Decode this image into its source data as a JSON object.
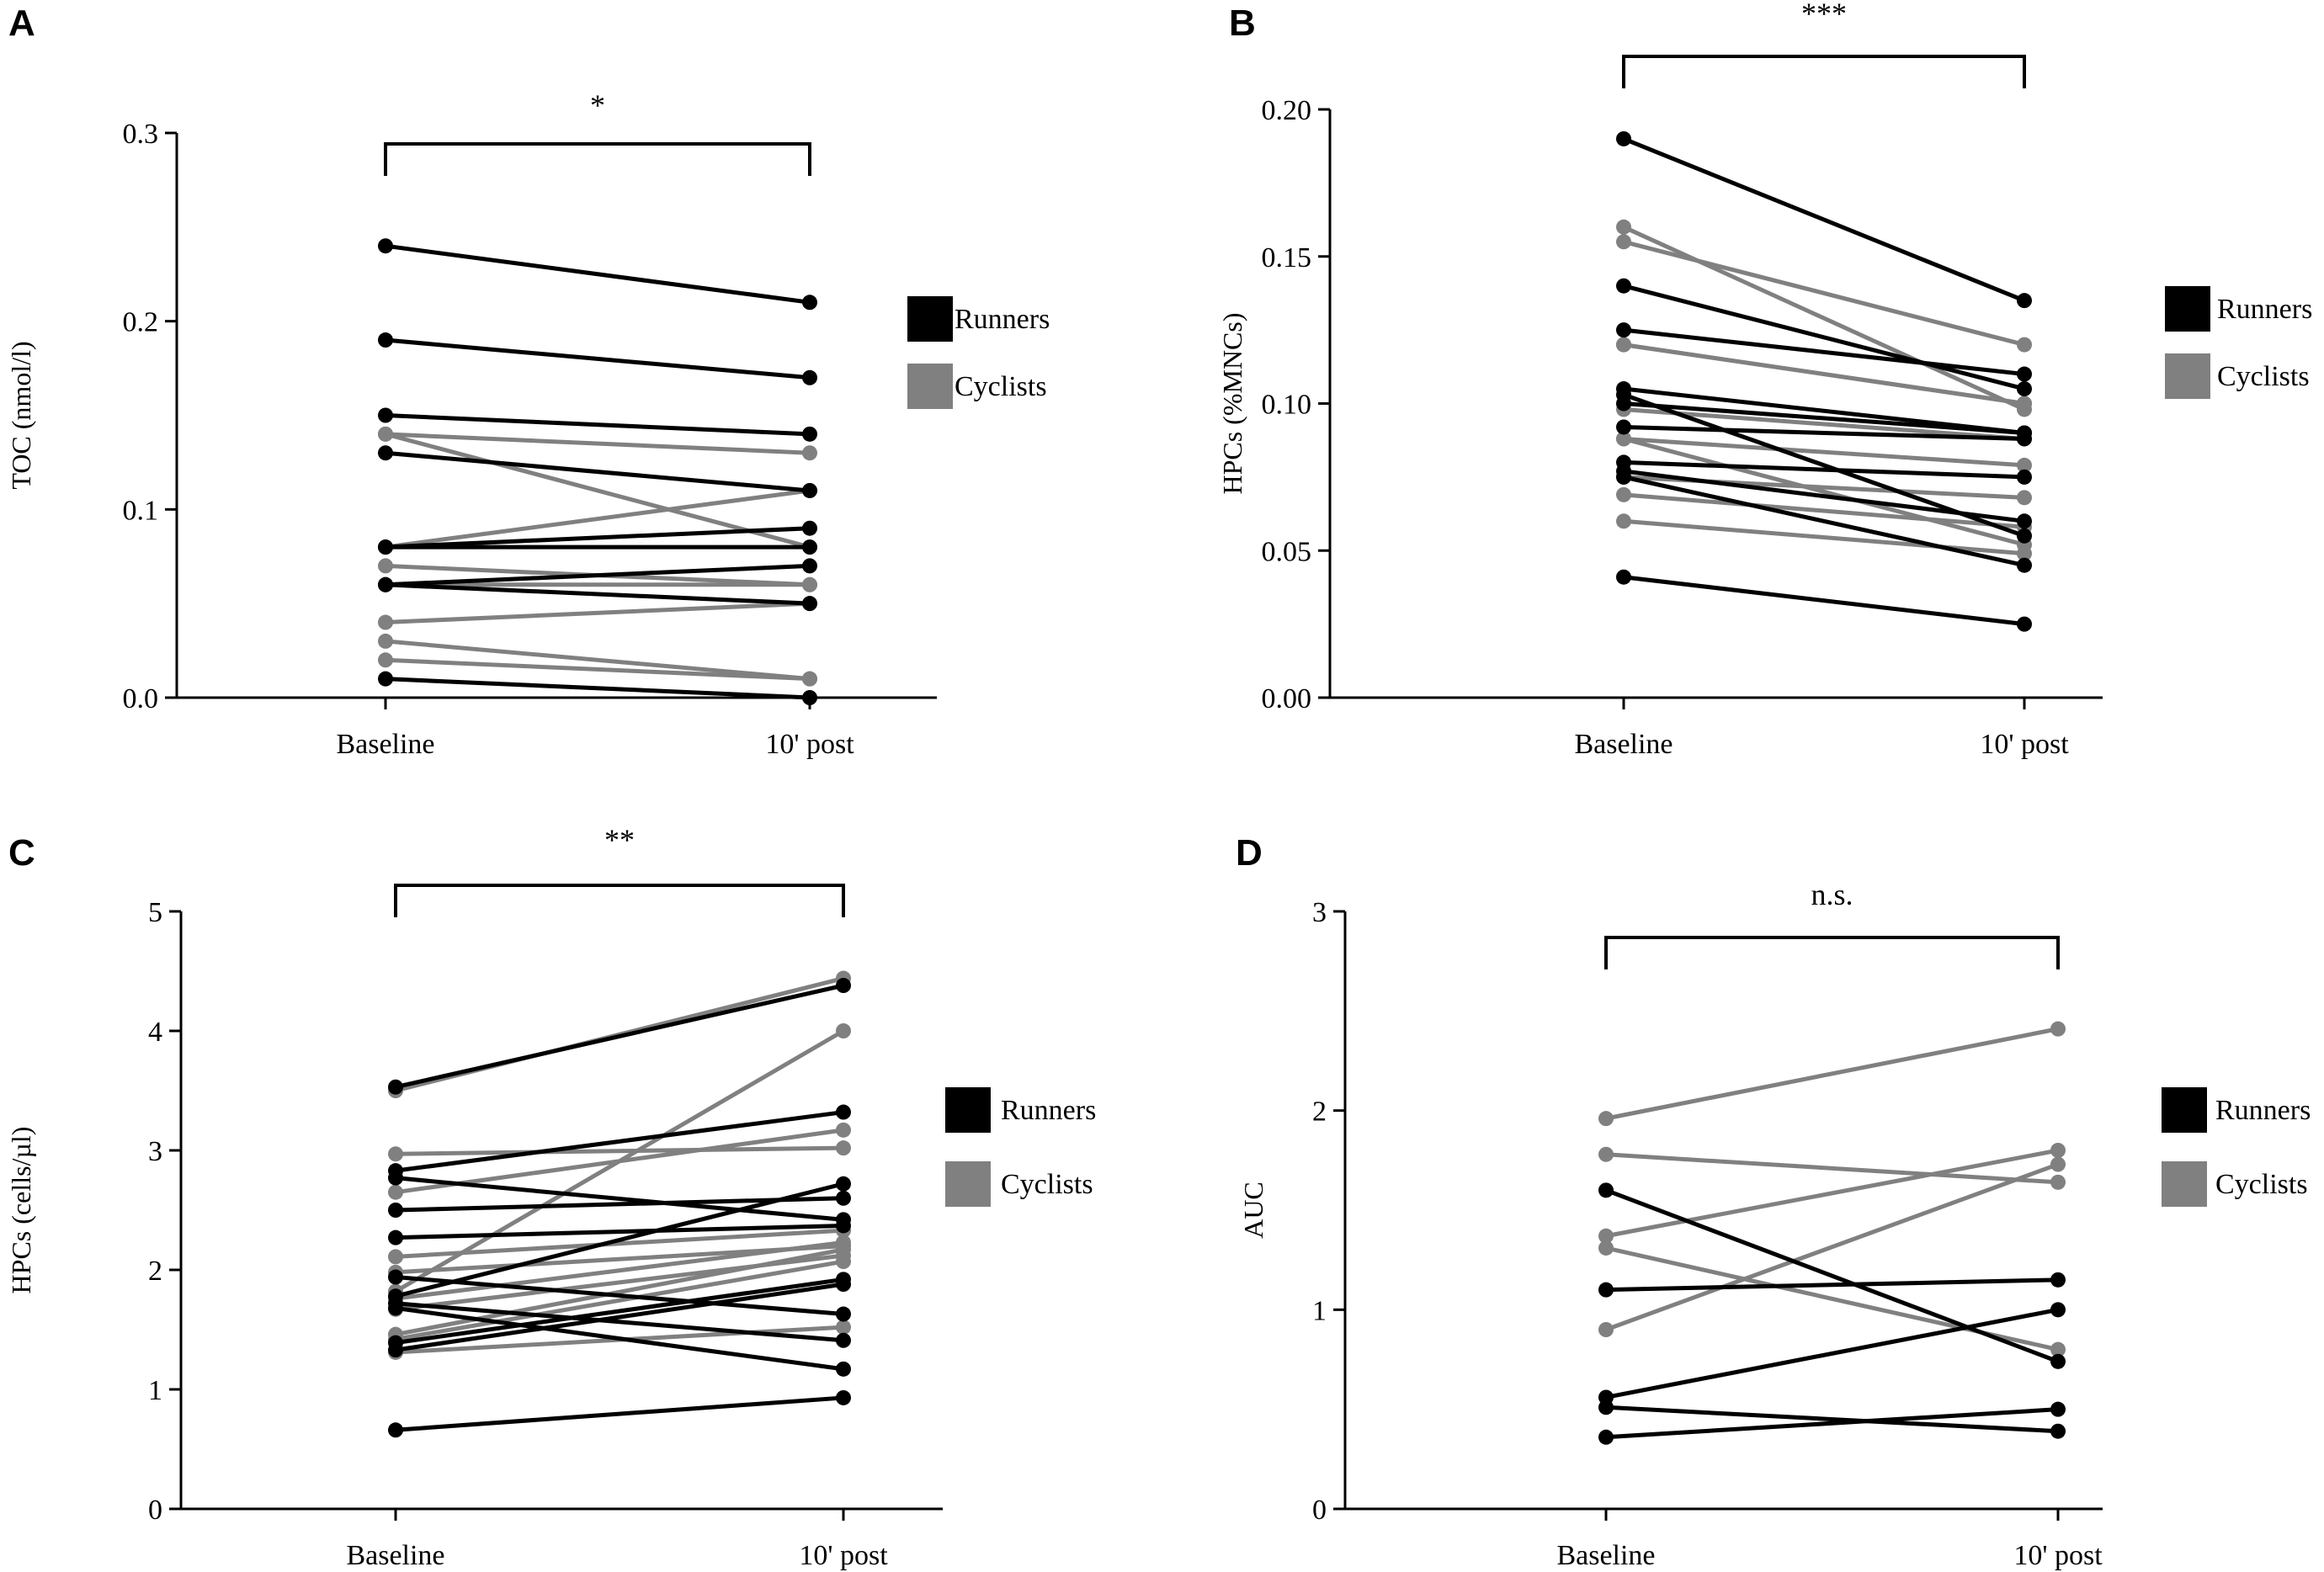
{
  "colors": {
    "runners": "#000000",
    "cyclists": "#808080"
  },
  "chart_data": [
    {
      "panel": "A",
      "type": "line",
      "ylabel": "TOC (nmol/l)",
      "ylim": [
        0,
        0.3
      ],
      "yticks": [
        "0.0",
        "0.1",
        "0.2",
        "0.3"
      ],
      "categories": [
        "Baseline",
        "10' post"
      ],
      "significance": "*",
      "legend": [
        "Runners",
        "Cyclists"
      ],
      "legend_position": "right",
      "series": [
        {
          "name": "Runners",
          "pairs": [
            [
              0.24,
              0.21
            ],
            [
              0.19,
              0.17
            ],
            [
              0.15,
              0.14
            ],
            [
              0.13,
              0.11
            ],
            [
              0.08,
              0.08
            ],
            [
              0.08,
              0.09
            ],
            [
              0.06,
              0.07
            ],
            [
              0.06,
              0.05
            ],
            [
              0.01,
              0.0
            ]
          ]
        },
        {
          "name": "Cyclists",
          "pairs": [
            [
              0.14,
              0.13
            ],
            [
              0.14,
              0.08
            ],
            [
              0.08,
              0.11
            ],
            [
              0.07,
              0.06
            ],
            [
              0.06,
              0.06
            ],
            [
              0.04,
              0.05
            ],
            [
              0.03,
              0.01
            ],
            [
              0.02,
              0.01
            ]
          ]
        }
      ]
    },
    {
      "panel": "B",
      "type": "line",
      "ylabel": "HPCs (%MNCs)",
      "ylim": [
        0,
        0.2
      ],
      "yticks": [
        "0.00",
        "0.05",
        "0.10",
        "0.15",
        "0.20"
      ],
      "categories": [
        "Baseline",
        "10' post"
      ],
      "significance": "***",
      "legend": [
        "Runners",
        "Cyclists"
      ],
      "legend_position": "right",
      "series": [
        {
          "name": "Runners",
          "pairs": [
            [
              0.19,
              0.135
            ],
            [
              0.14,
              0.105
            ],
            [
              0.125,
              0.11
            ],
            [
              0.105,
              0.09
            ],
            [
              0.103,
              0.055
            ],
            [
              0.1,
              0.09
            ],
            [
              0.092,
              0.088
            ],
            [
              0.08,
              0.075
            ],
            [
              0.077,
              0.06
            ],
            [
              0.075,
              0.045
            ],
            [
              0.041,
              0.025
            ]
          ]
        },
        {
          "name": "Cyclists",
          "pairs": [
            [
              0.16,
              0.098
            ],
            [
              0.155,
              0.12
            ],
            [
              0.12,
              0.1
            ],
            [
              0.12,
              0.1
            ],
            [
              0.098,
              0.088
            ],
            [
              0.088,
              0.079
            ],
            [
              0.088,
              0.052
            ],
            [
              0.075,
              0.068
            ],
            [
              0.069,
              0.058
            ],
            [
              0.06,
              0.049
            ]
          ]
        }
      ]
    },
    {
      "panel": "C",
      "type": "line",
      "ylabel": "HPCs (cells/µl)",
      "ylim": [
        0,
        5
      ],
      "yticks": [
        "0",
        "1",
        "2",
        "3",
        "4",
        "5"
      ],
      "categories": [
        "Baseline",
        "10' post"
      ],
      "significance": "**",
      "legend": [
        "Runners",
        "Cyclists"
      ],
      "legend_position": "right",
      "series": [
        {
          "name": "Runners",
          "pairs": [
            [
              3.53,
              4.38
            ],
            [
              2.83,
              3.32
            ],
            [
              2.77,
              2.42
            ],
            [
              2.5,
              2.6
            ],
            [
              2.27,
              2.37
            ],
            [
              1.94,
              1.63
            ],
            [
              1.78,
              2.72
            ],
            [
              1.72,
              1.41
            ],
            [
              1.39,
              1.92
            ],
            [
              1.33,
              1.88
            ],
            [
              1.68,
              1.17
            ],
            [
              0.66,
              0.93
            ]
          ]
        },
        {
          "name": "Cyclists",
          "pairs": [
            [
              3.5,
              4.44
            ],
            [
              2.97,
              3.02
            ],
            [
              2.65,
              3.17
            ],
            [
              2.11,
              2.33
            ],
            [
              1.98,
              2.2
            ],
            [
              1.82,
              4.0
            ],
            [
              1.76,
              2.23
            ],
            [
              1.67,
              2.12
            ],
            [
              1.46,
              2.17
            ],
            [
              1.42,
              2.07
            ],
            [
              1.31,
              1.52
            ]
          ]
        }
      ]
    },
    {
      "panel": "D",
      "type": "line",
      "ylabel": "AUC",
      "ylim": [
        0,
        3
      ],
      "yticks": [
        "0",
        "1",
        "2",
        "3"
      ],
      "categories": [
        "Baseline",
        "10' post"
      ],
      "significance": "n.s.",
      "legend": [
        "Runners",
        "Cyclists"
      ],
      "legend_position": "right",
      "series": [
        {
          "name": "Runners",
          "pairs": [
            [
              1.6,
              0.74
            ],
            [
              1.1,
              1.15
            ],
            [
              0.56,
              1.0
            ],
            [
              0.51,
              0.39
            ],
            [
              0.36,
              0.5
            ]
          ]
        },
        {
          "name": "Cyclists",
          "pairs": [
            [
              1.96,
              2.41
            ],
            [
              1.78,
              1.64
            ],
            [
              1.37,
              1.8
            ],
            [
              1.31,
              0.8
            ],
            [
              0.9,
              1.73
            ]
          ]
        }
      ]
    }
  ]
}
